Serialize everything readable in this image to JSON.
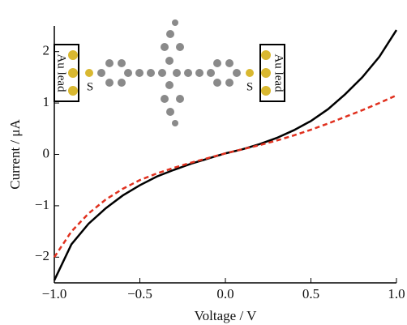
{
  "chart_data": {
    "type": "line",
    "x_label": "Voltage / V",
    "y_label": "Current / μA",
    "annotations": [
      "Au lead",
      "S",
      "S",
      "Au lead"
    ],
    "x": [
      -1.0,
      -0.9,
      -0.8,
      -0.7,
      -0.6,
      -0.5,
      -0.4,
      -0.3,
      -0.2,
      -0.1,
      0.0,
      0.1,
      0.2,
      0.3,
      0.4,
      0.5,
      0.6,
      0.7,
      0.8,
      0.9,
      1.0
    ],
    "series": [
      {
        "color": "#000000",
        "dash": "solid",
        "values": [
          -2.45,
          -1.75,
          -1.35,
          -1.05,
          -0.8,
          -0.6,
          -0.43,
          -0.3,
          -0.18,
          -0.08,
          0.02,
          0.1,
          0.2,
          0.32,
          0.47,
          0.65,
          0.88,
          1.17,
          1.5,
          1.9,
          2.42
        ]
      },
      {
        "color": "#e0301e",
        "dash": "dashed",
        "values": [
          -2.0,
          -1.5,
          -1.15,
          -0.88,
          -0.67,
          -0.5,
          -0.37,
          -0.26,
          -0.16,
          -0.07,
          0.02,
          0.1,
          0.18,
          0.27,
          0.37,
          0.48,
          0.6,
          0.73,
          0.86,
          1.0,
          1.15
        ]
      }
    ],
    "xlim": [
      -1.0,
      1.0
    ],
    "ylim": [
      -2.5,
      2.5
    ],
    "xticks": [
      {
        "value": -1.0,
        "label": "−1.0"
      },
      {
        "value": -0.5,
        "label": "−0.5"
      },
      {
        "value": 0.0,
        "label": "0.0"
      },
      {
        "value": 0.5,
        "label": "0.5"
      },
      {
        "value": 1.0,
        "label": "1.0"
      }
    ],
    "yticks": [
      {
        "value": -2,
        "label": "−2"
      },
      {
        "value": -1,
        "label": "−1"
      },
      0,
      1,
      2
    ],
    "grid": false
  }
}
